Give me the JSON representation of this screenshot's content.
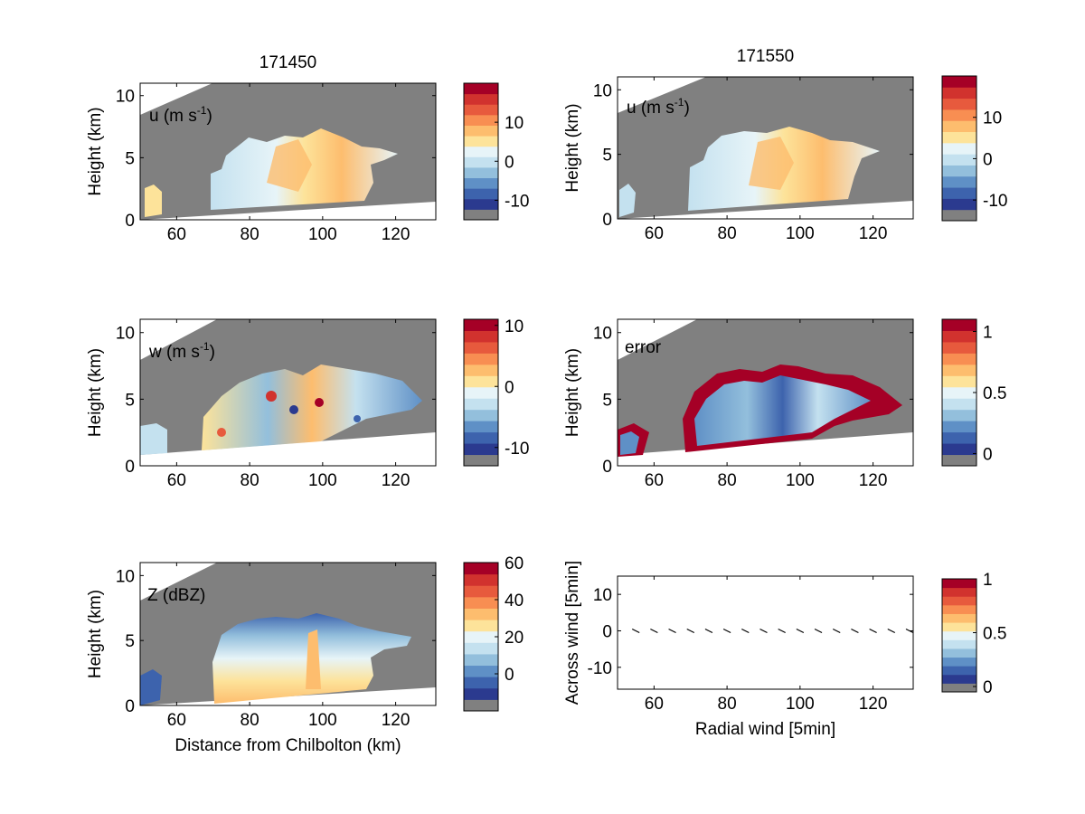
{
  "colorbar_palette": [
    "#808080",
    "#2b3a8f",
    "#3d63ad",
    "#5f90c6",
    "#93bfdc",
    "#c4e1ef",
    "#e7f4f8",
    "#fde39a",
    "#fdbd6e",
    "#f88e52",
    "#e75a3d",
    "#d1322e",
    "#a50026"
  ],
  "chart_data": [
    {
      "type": "heatmap",
      "id": "u",
      "title": "171450",
      "annotation": "u (m s",
      "annotation_sup": "-1",
      "annotation_close": ")",
      "xlabel": "",
      "ylabel": "Height (km)",
      "xlim": [
        50,
        131
      ],
      "ylim": [
        0,
        11
      ],
      "xticks": [
        "60",
        "80",
        "100",
        "120"
      ],
      "xtick_values": [
        60,
        80,
        100,
        120
      ],
      "yticks": [
        "0",
        "5",
        "10"
      ],
      "ytick_values": [
        0,
        5,
        10
      ],
      "colorbar": {
        "ticks": [
          "10",
          "0",
          "-10"
        ],
        "tick_values": [
          10,
          0,
          -10
        ],
        "range": [
          -15,
          20
        ]
      }
    },
    {
      "type": "heatmap",
      "id": "u2",
      "title": "171550",
      "annotation": "u (m s",
      "annotation_sup": "-1",
      "annotation_close": ")",
      "xlabel": "",
      "ylabel": "Height (km)",
      "xlim": [
        50,
        131
      ],
      "ylim": [
        0,
        11
      ],
      "xticks": [
        "60",
        "80",
        "100",
        "120"
      ],
      "xtick_values": [
        60,
        80,
        100,
        120
      ],
      "yticks": [
        "0",
        "5",
        "10"
      ],
      "ytick_values": [
        0,
        5,
        10
      ],
      "colorbar": {
        "ticks": [
          "10",
          "0",
          "-10"
        ],
        "tick_values": [
          10,
          0,
          -10
        ],
        "range": [
          -15,
          20
        ]
      }
    },
    {
      "type": "heatmap",
      "id": "w",
      "title": "",
      "annotation": "w (m s",
      "annotation_sup": "-1",
      "annotation_close": ")",
      "xlabel": "",
      "ylabel": "Height (km)",
      "xlim": [
        50,
        131
      ],
      "ylim": [
        0,
        11
      ],
      "xticks": [
        "60",
        "80",
        "100",
        "120"
      ],
      "xtick_values": [
        60,
        80,
        100,
        120
      ],
      "yticks": [
        "0",
        "5",
        "10"
      ],
      "ytick_values": [
        0,
        5,
        10
      ],
      "colorbar": {
        "ticks": [
          "10",
          "0",
          "-10"
        ],
        "tick_values": [
          10,
          0,
          -10
        ],
        "range": [
          -13,
          11
        ]
      }
    },
    {
      "type": "heatmap",
      "id": "error",
      "title": "",
      "annotation": "error",
      "annotation_sup": "",
      "annotation_close": "",
      "xlabel": "",
      "ylabel": "Height (km)",
      "xlim": [
        50,
        131
      ],
      "ylim": [
        0,
        11
      ],
      "xticks": [
        "60",
        "80",
        "100",
        "120"
      ],
      "xtick_values": [
        60,
        80,
        100,
        120
      ],
      "yticks": [
        "0",
        "5",
        "10"
      ],
      "ytick_values": [
        0,
        5,
        10
      ],
      "colorbar": {
        "ticks": [
          "1",
          "0.5",
          "0"
        ],
        "tick_values": [
          1,
          0.5,
          0
        ],
        "range": [
          -0.1,
          1.1
        ]
      }
    },
    {
      "type": "heatmap",
      "id": "z",
      "title": "",
      "annotation": "Z (dBZ)",
      "annotation_sup": "",
      "annotation_close": "",
      "xlabel": "Distance from Chilbolton (km)",
      "ylabel": "Height (km)",
      "xlim": [
        50,
        131
      ],
      "ylim": [
        0,
        11
      ],
      "xticks": [
        "60",
        "80",
        "100",
        "120"
      ],
      "xtick_values": [
        60,
        80,
        100,
        120
      ],
      "yticks": [
        "0",
        "5",
        "10"
      ],
      "ytick_values": [
        0,
        5,
        10
      ],
      "colorbar": {
        "ticks": [
          "60",
          "40",
          "20",
          "0"
        ],
        "tick_values": [
          60,
          40,
          20,
          0
        ],
        "range": [
          -20,
          60
        ]
      }
    },
    {
      "type": "scatter",
      "id": "wind",
      "title": "",
      "annotation": "",
      "annotation_sup": "",
      "annotation_close": "",
      "xlabel": "Radial wind [5min]",
      "ylabel": "Across wind [5min]",
      "xlim": [
        50,
        131
      ],
      "ylim": [
        -16,
        15
      ],
      "xticks": [
        "60",
        "80",
        "100",
        "120"
      ],
      "xtick_values": [
        60,
        80,
        100,
        120
      ],
      "yticks": [
        "10",
        "0",
        "-10"
      ],
      "ytick_values": [
        10,
        0,
        -10
      ],
      "colorbar": {
        "ticks": [
          "1",
          "0.5",
          "0"
        ],
        "tick_values": [
          1,
          0.5,
          0
        ],
        "range": [
          -0.05,
          1
        ]
      },
      "x": [
        55,
        60,
        65,
        70,
        75,
        80,
        85,
        90,
        95,
        100,
        105,
        110,
        115,
        120,
        125,
        130
      ],
      "y": [
        0,
        0,
        0,
        0,
        0,
        0,
        0,
        0,
        0,
        0,
        0,
        0,
        0,
        0,
        0,
        0
      ]
    }
  ]
}
